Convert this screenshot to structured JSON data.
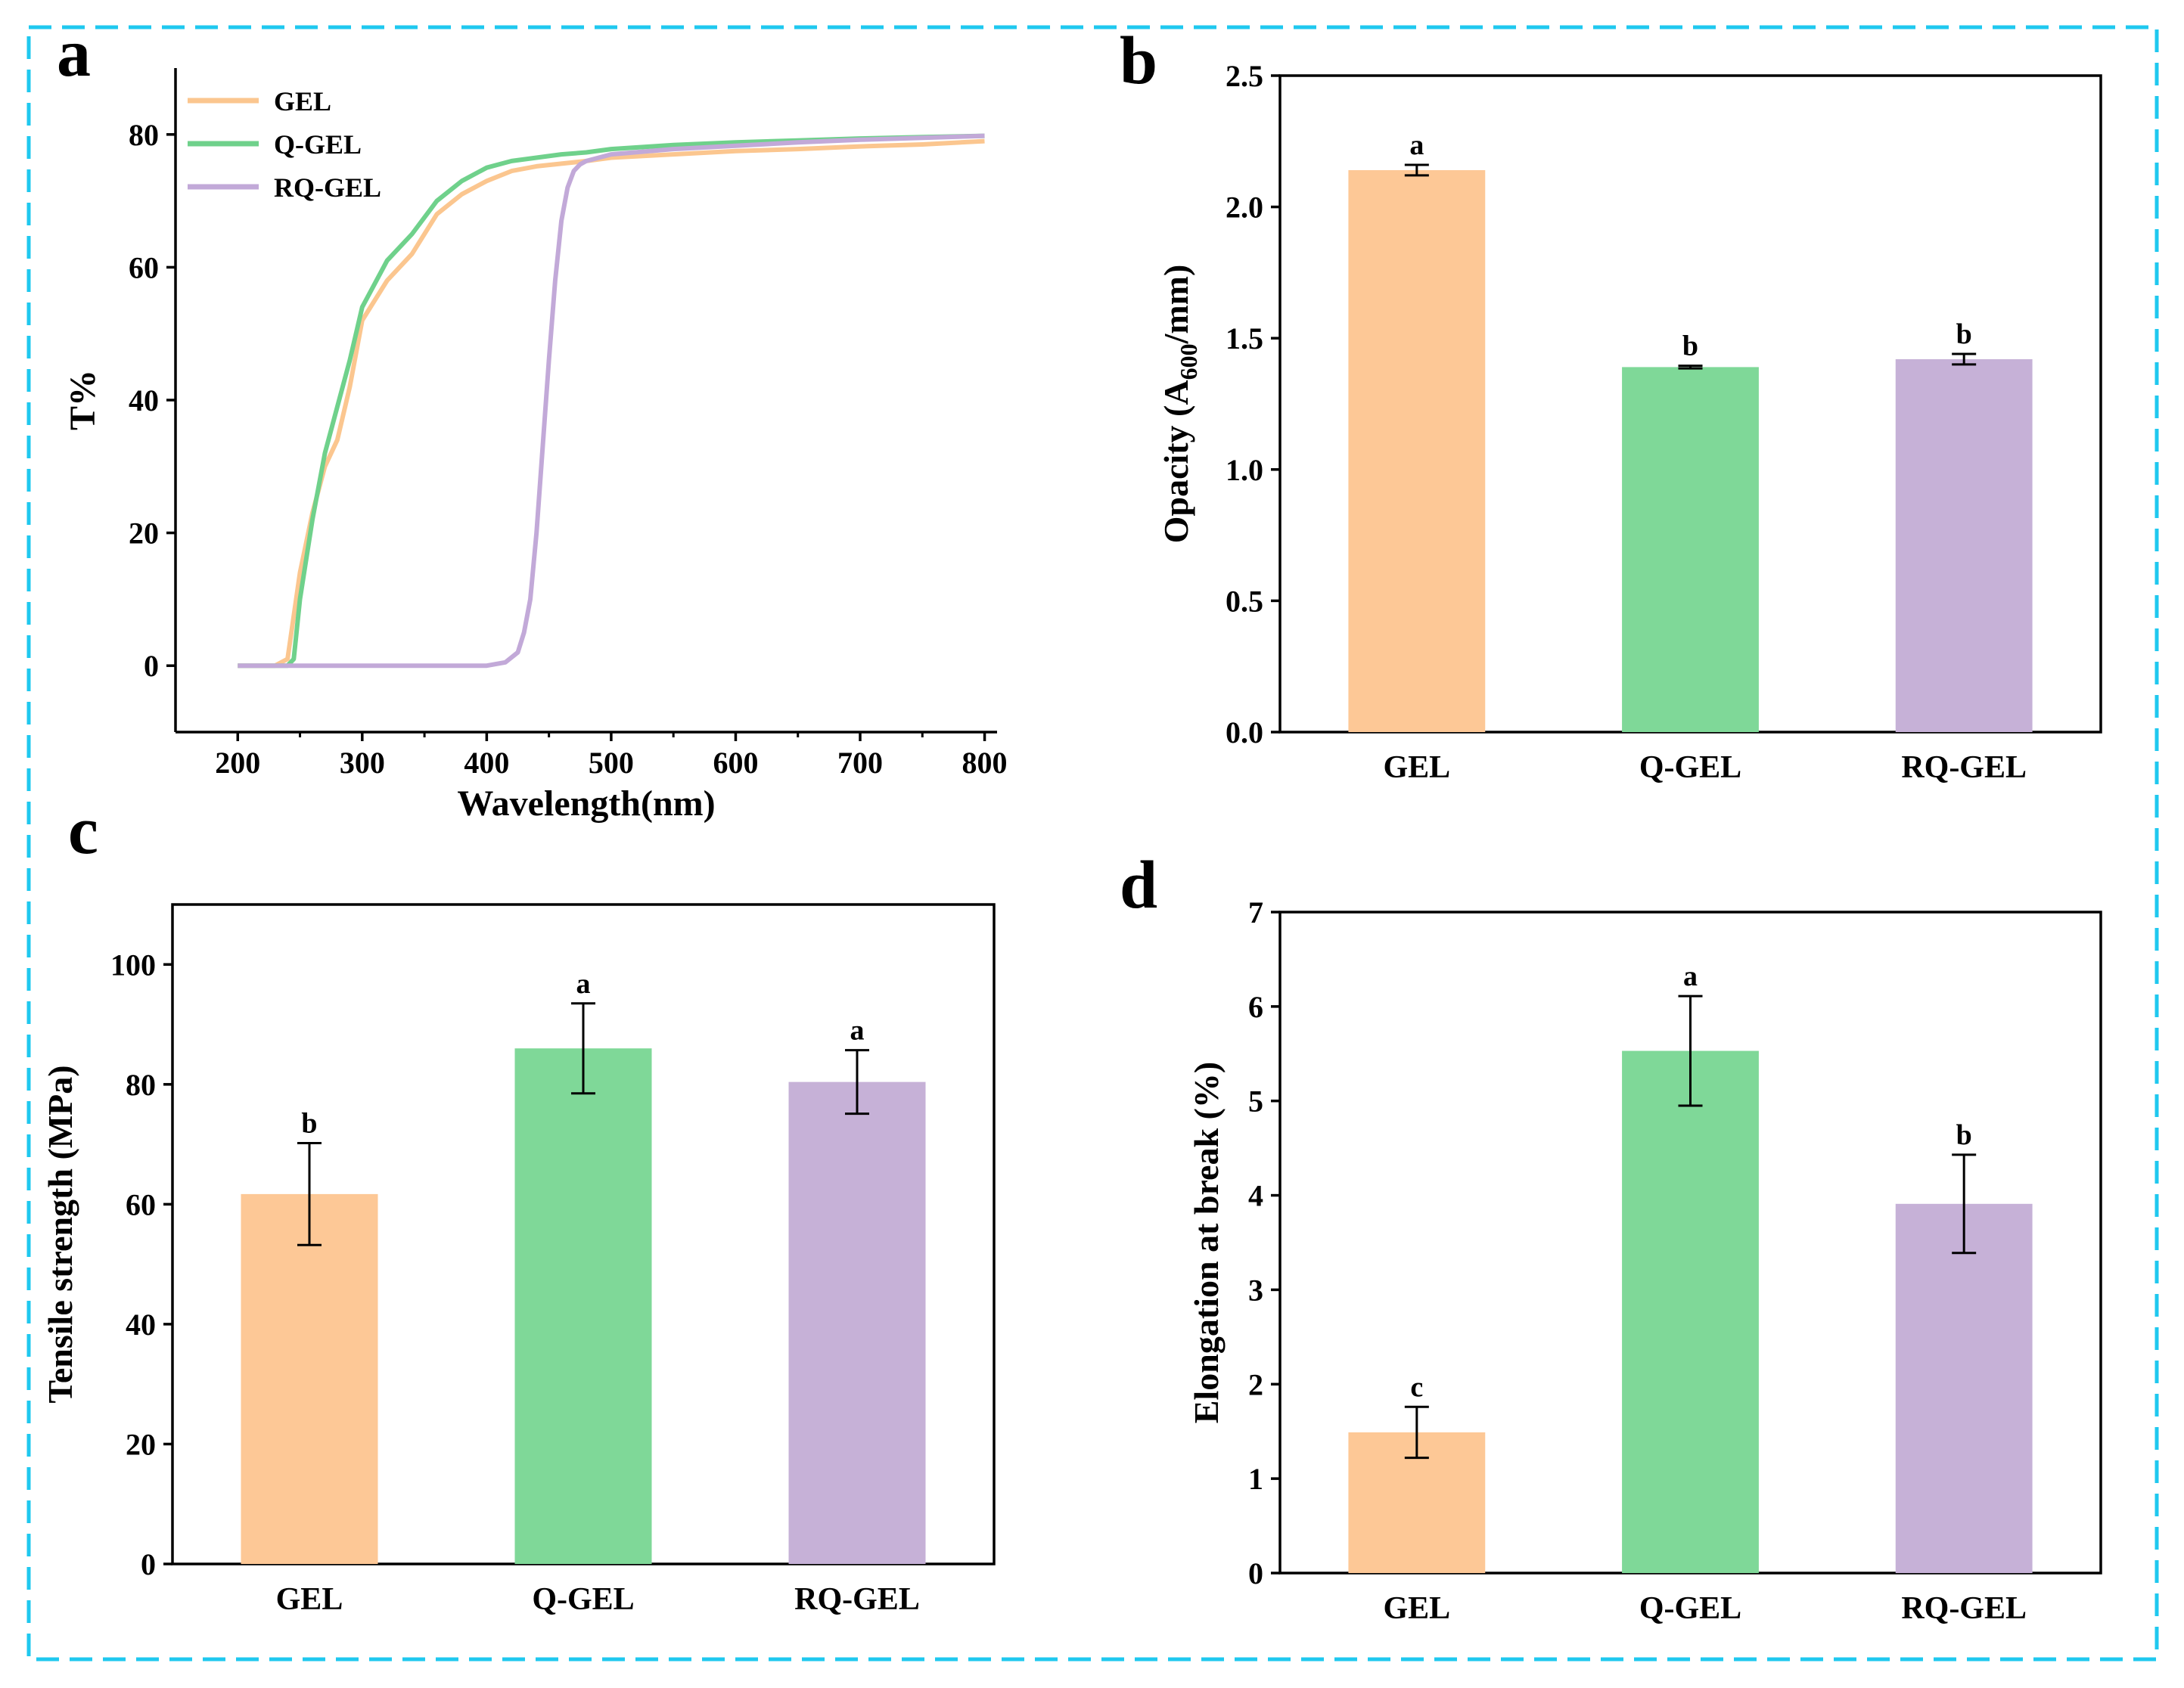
{
  "panels": [
    "a",
    "b",
    "c",
    "d"
  ],
  "chart_data": [
    {
      "id": "a",
      "type": "line",
      "panel_letter": "a",
      "xlabel": "Wavelength(nm)",
      "ylabel": "T%",
      "xlim": [
        150,
        810
      ],
      "ylim": [
        -10,
        90
      ],
      "xticks": [
        200,
        300,
        400,
        500,
        600,
        700,
        800
      ],
      "yticks": [
        0,
        20,
        40,
        60,
        80
      ],
      "legend_position": "top-left",
      "series": [
        {
          "name": "GEL",
          "color": "#fbc68f",
          "x": [
            200,
            230,
            240,
            250,
            260,
            270,
            280,
            290,
            300,
            320,
            340,
            360,
            380,
            400,
            420,
            440,
            460,
            480,
            500,
            550,
            600,
            650,
            700,
            750,
            800
          ],
          "y": [
            0,
            0,
            1,
            14,
            23,
            30,
            34,
            42,
            52,
            58,
            62,
            68,
            71,
            73,
            74.5,
            75.2,
            75.6,
            76,
            76.5,
            77,
            77.5,
            77.8,
            78.2,
            78.5,
            79
          ]
        },
        {
          "name": "Q-GEL",
          "color": "#6fd18b",
          "x": [
            200,
            230,
            240,
            245,
            250,
            260,
            270,
            280,
            290,
            300,
            320,
            340,
            360,
            380,
            400,
            420,
            440,
            460,
            480,
            500,
            550,
            600,
            650,
            700,
            750,
            800
          ],
          "y": [
            0,
            0,
            0,
            1,
            10,
            22,
            32,
            39,
            46,
            54,
            61,
            65,
            70,
            73,
            75,
            76,
            76.5,
            77,
            77.3,
            77.8,
            78.4,
            78.8,
            79.1,
            79.4,
            79.6,
            79.8
          ]
        },
        {
          "name": "RQ-GEL",
          "color": "#c2a9d8",
          "x": [
            200,
            300,
            400,
            415,
            425,
            430,
            435,
            440,
            445,
            450,
            455,
            460,
            465,
            470,
            475,
            480,
            490,
            500,
            550,
            600,
            650,
            700,
            750,
            800
          ],
          "y": [
            0,
            0,
            0,
            0.5,
            2,
            5,
            10,
            20,
            33,
            46,
            58,
            67,
            72,
            74.5,
            75.5,
            76,
            76.5,
            77,
            77.8,
            78.3,
            78.8,
            79.2,
            79.5,
            79.8
          ]
        }
      ]
    },
    {
      "id": "b",
      "type": "bar",
      "panel_letter": "b",
      "ylabel": "Opacity (A",
      "ylabel_sub": "600",
      "ylabel_tail": "/mm)",
      "categories": [
        "GEL",
        "Q-GEL",
        "RQ-GEL"
      ],
      "values": [
        2.14,
        1.39,
        1.42
      ],
      "errors": [
        0.02,
        0.005,
        0.02
      ],
      "letters": [
        "a",
        "b",
        "b"
      ],
      "colors": [
        "#fdc896",
        "#7fd898",
        "#c6b1d7"
      ],
      "ylim": [
        0,
        2.5
      ],
      "yticks": [
        "0.0",
        "0.5",
        "1.0",
        "1.5",
        "2.0",
        "2.5"
      ]
    },
    {
      "id": "c",
      "type": "bar",
      "panel_letter": "c",
      "ylabel": "Tensile strength (MPa)",
      "categories": [
        "GEL",
        "Q-GEL",
        "RQ-GEL"
      ],
      "values": [
        61.7,
        86.0,
        80.4
      ],
      "errors": [
        8.5,
        7.5,
        5.3
      ],
      "letters": [
        "b",
        "a",
        "a"
      ],
      "colors": [
        "#fdc896",
        "#7fd898",
        "#c6b1d7"
      ],
      "ylim": [
        0,
        110
      ],
      "yticks": [
        "0",
        "20",
        "40",
        "60",
        "80",
        "100"
      ]
    },
    {
      "id": "d",
      "type": "bar",
      "panel_letter": "d",
      "ylabel": "Elongation at break (%)",
      "categories": [
        "GEL",
        "Q-GEL",
        "RQ-GEL"
      ],
      "values": [
        1.49,
        5.53,
        3.91
      ],
      "errors": [
        0.27,
        0.58,
        0.52
      ],
      "letters": [
        "c",
        "a",
        "b"
      ],
      "colors": [
        "#fdc896",
        "#7fd898",
        "#c6b1d7"
      ],
      "ylim": [
        0,
        7
      ],
      "yticks": [
        "0",
        "1",
        "2",
        "3",
        "4",
        "5",
        "6",
        "7"
      ]
    }
  ]
}
